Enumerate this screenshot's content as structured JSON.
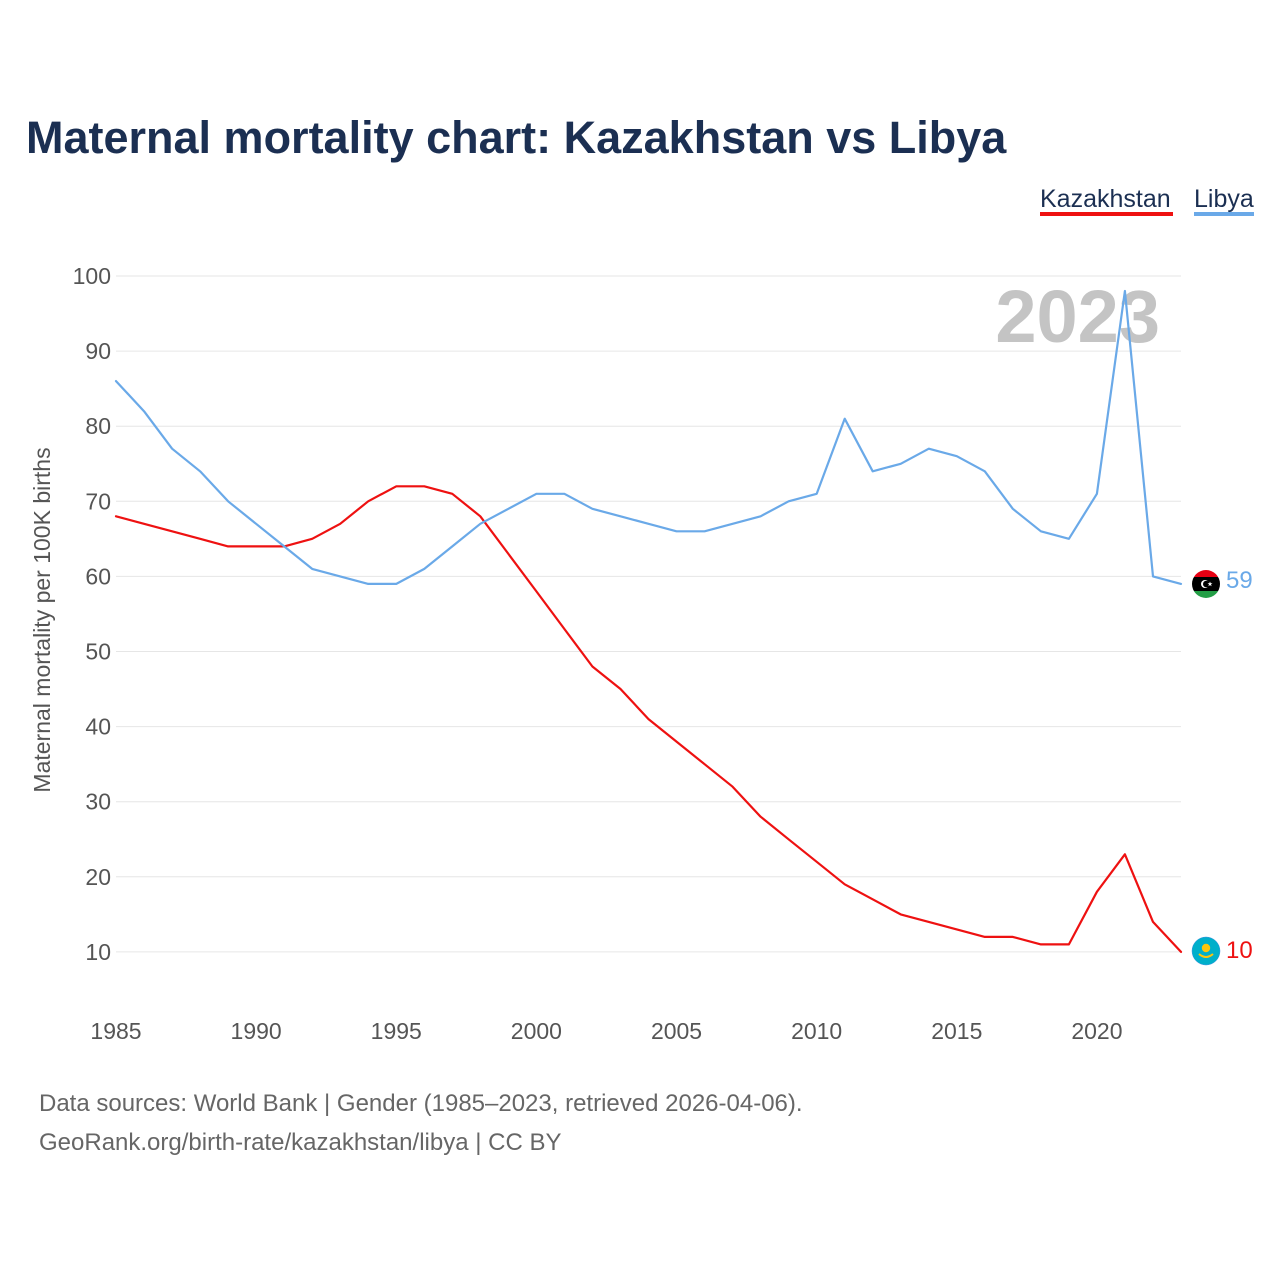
{
  "chart_data": {
    "type": "line",
    "title": "Maternal mortality chart: Kazakhstan vs Libya",
    "ylabel": "Maternal mortality per 100K births",
    "xlabel": "",
    "year_label": "2023",
    "x": [
      1985,
      1986,
      1987,
      1988,
      1989,
      1990,
      1991,
      1992,
      1993,
      1994,
      1995,
      1996,
      1997,
      1998,
      1999,
      2000,
      2001,
      2002,
      2003,
      2004,
      2005,
      2006,
      2007,
      2008,
      2009,
      2010,
      2011,
      2012,
      2013,
      2014,
      2015,
      2016,
      2017,
      2018,
      2019,
      2020,
      2021,
      2022,
      2023
    ],
    "xlim": [
      1985,
      2023
    ],
    "ylim": [
      0,
      100
    ],
    "x_ticks": [
      1985,
      1990,
      1995,
      2000,
      2005,
      2010,
      2015,
      2020
    ],
    "x_tick_labels": [
      "1985",
      "1990",
      "1995",
      "2000",
      "2005",
      "2010",
      "2015",
      "2020"
    ],
    "y_ticks": [
      10,
      20,
      30,
      40,
      50,
      60,
      70,
      80,
      90,
      100
    ],
    "y_tick_labels": [
      "10",
      "20",
      "30",
      "40",
      "50",
      "60",
      "70",
      "80",
      "90",
      "100"
    ],
    "grid": true,
    "legend_position": "top-right",
    "series": [
      {
        "name": "Kazakhstan",
        "color": "#ee1111",
        "end_label": "10",
        "flag_icon": "kazakhstan-flag-icon",
        "values": [
          68,
          67,
          66,
          65,
          64,
          64,
          64,
          65,
          67,
          70,
          72,
          72,
          71,
          68,
          63,
          58,
          53,
          48,
          45,
          41,
          38,
          35,
          32,
          28,
          25,
          22,
          19,
          17,
          15,
          14,
          13,
          12,
          12,
          11,
          11,
          18,
          23,
          14,
          10
        ]
      },
      {
        "name": "Libya",
        "color": "#6aa9e8",
        "end_label": "59",
        "flag_icon": "libya-flag-icon",
        "values": [
          86,
          82,
          77,
          74,
          70,
          67,
          64,
          61,
          60,
          59,
          59,
          61,
          64,
          67,
          69,
          71,
          71,
          69,
          68,
          67,
          66,
          66,
          67,
          68,
          70,
          71,
          81,
          74,
          75,
          77,
          76,
          74,
          69,
          66,
          65,
          71,
          98,
          60,
          59
        ]
      }
    ]
  },
  "footer": {
    "source_line": "Data sources: World Bank | Gender (1985–2023, retrieved 2026-04-06).",
    "credit_line": "GeoRank.org/birth-rate/kazakhstan/libya | CC BY"
  },
  "colors": {
    "title": "#1b2f52",
    "kazakhstan": "#ee1111",
    "libya": "#6aa9e8"
  }
}
